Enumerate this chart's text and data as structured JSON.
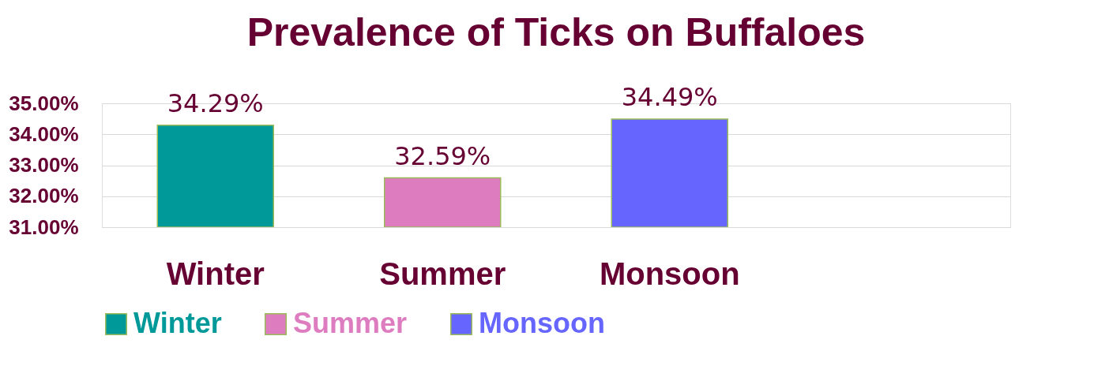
{
  "chart_data": {
    "type": "bar",
    "title": "Prevalence of Ticks on Buffaloes",
    "categories": [
      "Winter",
      "Summer",
      "Monsoon",
      null
    ],
    "series": [
      {
        "name": "Winter",
        "color": "#009999",
        "values": [
          34.29,
          null,
          null,
          null
        ],
        "value_labels": [
          "34.29%",
          null,
          null,
          null
        ]
      },
      {
        "name": "Summer",
        "color": "#dd7dbf",
        "values": [
          null,
          32.59,
          null,
          null
        ],
        "value_labels": [
          null,
          "32.59%",
          null,
          null
        ]
      },
      {
        "name": "Monsoon",
        "color": "#6666ff",
        "values": [
          null,
          null,
          34.49,
          null
        ],
        "value_labels": [
          null,
          null,
          "34.49%",
          null
        ]
      }
    ],
    "ylim": [
      31,
      35
    ],
    "yticks": [
      {
        "value": 31,
        "label": "31.00%"
      },
      {
        "value": 32,
        "label": "32.00%"
      },
      {
        "value": 33,
        "label": "33.00%"
      },
      {
        "value": 34,
        "label": "34.00%"
      },
      {
        "value": 35,
        "label": "35.00%"
      }
    ],
    "grid": "y",
    "legend": "bottom"
  }
}
